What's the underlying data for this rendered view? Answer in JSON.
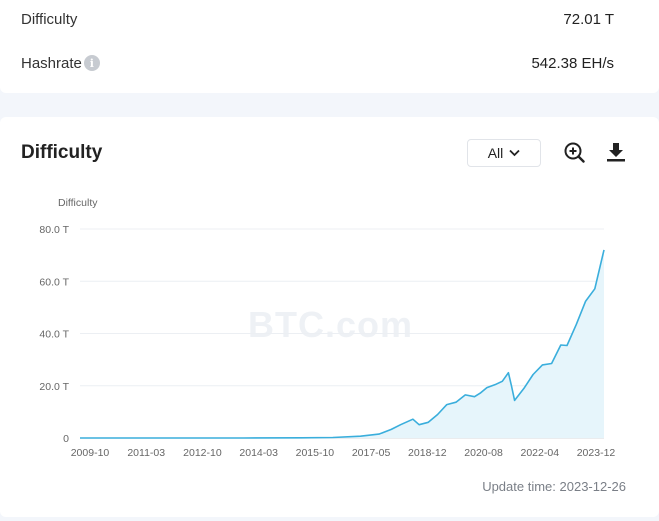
{
  "stats": {
    "difficulty_label": "Difficulty",
    "difficulty_value": "72.01 T",
    "hashrate_label": "Hashrate",
    "hashrate_value": "542.38 EH/s",
    "info_icon_glyph": "i"
  },
  "chart_panel": {
    "title": "Difficulty",
    "range_selected": "All",
    "watermark": "BTC.com",
    "update_time": "Update time: 2023-12-26",
    "icons": [
      "zoom-in-icon",
      "download-icon",
      "chevron-down-icon",
      "info-icon"
    ]
  },
  "colors": {
    "line": "#3aaedc",
    "area": "#e6f5fb",
    "grid": "#eceff3"
  },
  "chart_data": {
    "type": "area",
    "ylabel": "Difficulty",
    "unit": "T",
    "ylim": [
      0,
      80
    ],
    "yticks": [
      0,
      20,
      40,
      60,
      80
    ],
    "ytick_labels": [
      "0",
      "20.0 T",
      "40.0 T",
      "60.0 T",
      "80.0 T"
    ],
    "xtick_labels": [
      "2009-10",
      "2011-03",
      "2012-10",
      "2014-03",
      "2015-10",
      "2017-05",
      "2018-12",
      "2020-08",
      "2022-04",
      "2023-12"
    ],
    "grid": true,
    "legend": "none",
    "x": [
      "2009-10",
      "2011-03",
      "2012-10",
      "2014-03",
      "2015-10",
      "2016-08",
      "2017-05",
      "2017-11",
      "2018-03",
      "2018-06",
      "2018-10",
      "2018-12",
      "2019-03",
      "2019-06",
      "2019-09",
      "2019-12",
      "2020-03",
      "2020-06",
      "2020-08",
      "2020-10",
      "2021-01",
      "2021-03",
      "2021-05",
      "2021-06",
      "2021-07",
      "2021-10",
      "2022-01",
      "2022-04",
      "2022-07",
      "2022-10",
      "2022-12",
      "2023-03",
      "2023-06",
      "2023-09",
      "2023-12"
    ],
    "values": [
      0,
      0,
      0,
      0.005,
      0.07,
      0.2,
      0.7,
      1.5,
      3.3,
      5.1,
      7.2,
      5.1,
      6.0,
      9.0,
      12.8,
      13.7,
      16.5,
      15.8,
      17.3,
      19.3,
      20.6,
      21.7,
      25.0,
      19.9,
      14.4,
      19.0,
      24.3,
      28.0,
      28.5,
      35.6,
      35.4,
      43.5,
      52.3,
      57.1,
      72.01
    ]
  }
}
